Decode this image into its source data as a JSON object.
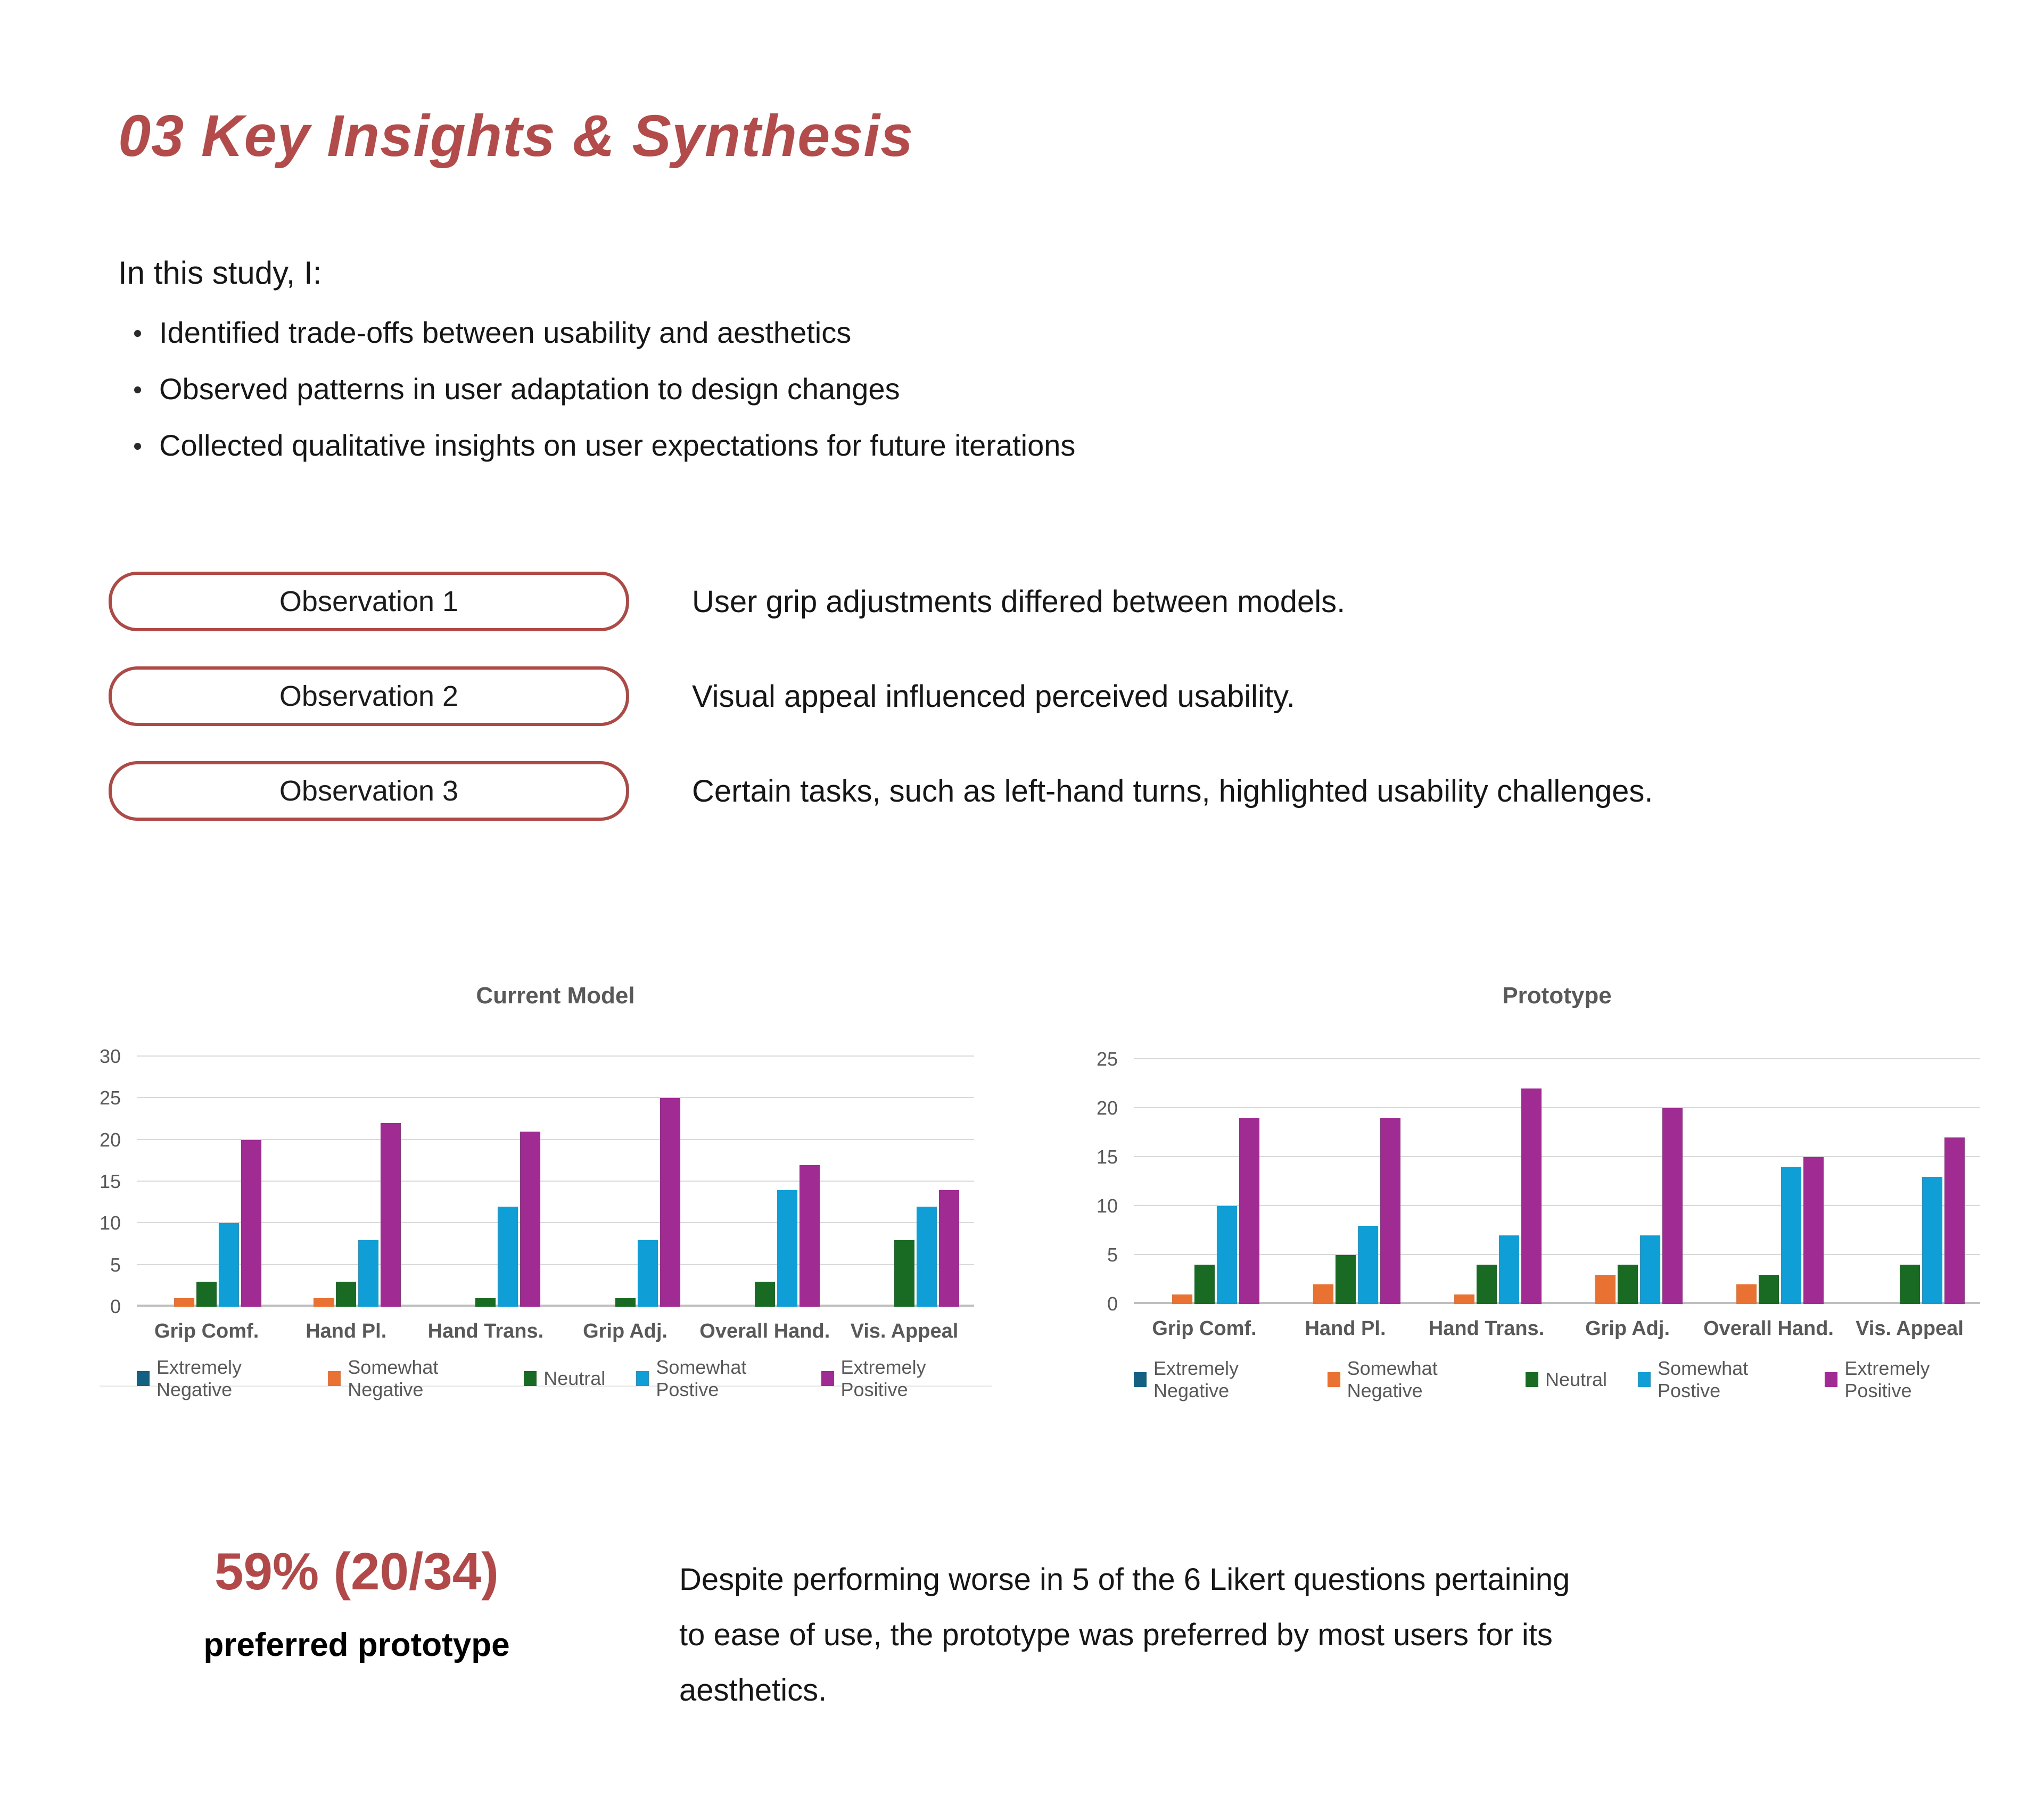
{
  "page": {
    "title": "03 Key Insights & Synthesis",
    "intro": {
      "lead": "In this study, I:",
      "bullets": [
        "Identified trade-offs between usability and aesthetics",
        "Observed patterns in user adaptation to design changes",
        "Collected qualitative insights on user expectations for future iterations"
      ]
    },
    "observations": [
      {
        "label": "Observation 1",
        "text": "User grip adjustments differed between models."
      },
      {
        "label": "Observation 2",
        "text": "Visual appeal influenced perceived usability."
      },
      {
        "label": "Observation 3",
        "text": "Certain tasks, such as left-hand turns, highlighted usability challenges."
      }
    ],
    "findings": {
      "stat": "59% (20/34)",
      "stat_caption": "preferred prototype",
      "description_lines": [
        "Despite performing worse in 5 of the 6 Likert questions pertaining",
        "to ease of use, the prototype was preferred by most users for its",
        "aesthetics."
      ]
    },
    "theme": {
      "accent_red": "#B44B4B",
      "button_border_red": "#AF4946",
      "stat_red": "#B34848",
      "chart_text_gray": "#595959",
      "gridline_gray": "#D9D9D9",
      "axis_gray": "#BFBFBF"
    }
  },
  "chart_data": [
    {
      "type": "bar",
      "title": "Current Model",
      "categories": [
        "Grip Comf.",
        "Hand Pl.",
        "Hand Trans.",
        "Grip Adj.",
        "Overall Hand.",
        "Vis. Appeal"
      ],
      "series": [
        {
          "name": "Extremely Negative",
          "color": "#156082",
          "values": [
            0,
            0,
            0,
            0,
            0,
            0
          ]
        },
        {
          "name": "Somewhat Negative",
          "color": "#E97132",
          "values": [
            1,
            1,
            0,
            0,
            0,
            0
          ]
        },
        {
          "name": "Neutral",
          "color": "#196B24",
          "values": [
            3,
            3,
            1,
            1,
            3,
            8
          ]
        },
        {
          "name": "Somewhat Postive",
          "color": "#0F9ED5",
          "values": [
            10,
            8,
            12,
            8,
            14,
            12
          ]
        },
        {
          "name": "Extremely Positive",
          "color": "#A02B93",
          "values": [
            20,
            22,
            21,
            25,
            17,
            14
          ]
        }
      ],
      "xlabel": "",
      "ylabel": "",
      "ylim": [
        0,
        30
      ],
      "yticks": [
        0,
        5,
        10,
        15,
        20,
        25,
        30
      ],
      "grid": true,
      "legend_position": "bottom"
    },
    {
      "type": "bar",
      "title": "Prototype",
      "categories": [
        "Grip Comf.",
        "Hand Pl.",
        "Hand Trans.",
        "Grip Adj.",
        "Overall Hand.",
        "Vis. Appeal"
      ],
      "series": [
        {
          "name": "Extremely Negative",
          "color": "#156082",
          "values": [
            0,
            0,
            0,
            0,
            0,
            0
          ]
        },
        {
          "name": "Somewhat Negative",
          "color": "#E97132",
          "values": [
            1,
            2,
            1,
            3,
            2,
            0
          ]
        },
        {
          "name": "Neutral",
          "color": "#196B24",
          "values": [
            4,
            5,
            4,
            4,
            3,
            4
          ]
        },
        {
          "name": "Somewhat Postive",
          "color": "#0F9ED5",
          "values": [
            10,
            8,
            7,
            7,
            14,
            13
          ]
        },
        {
          "name": "Extremely Positive",
          "color": "#A02B93",
          "values": [
            19,
            19,
            22,
            20,
            15,
            17
          ]
        }
      ],
      "xlabel": "",
      "ylabel": "",
      "ylim": [
        0,
        25
      ],
      "yticks": [
        0,
        5,
        10,
        15,
        20,
        25
      ],
      "grid": true,
      "legend_position": "bottom"
    }
  ]
}
